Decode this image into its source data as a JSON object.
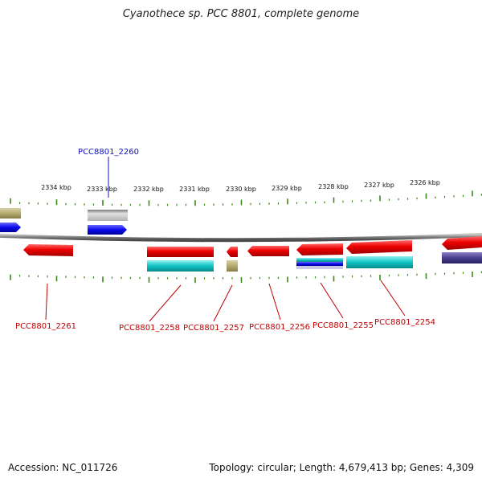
{
  "title": "Cyanothece sp. PCC 8801, complete genome",
  "footer": {
    "accession": "Accession: NC_011726",
    "summary": "Topology: circular; Length: 4,679,413 bp; Genes: 4,309"
  },
  "colors": {
    "backbone": "#7a7a7a",
    "tick": "#3a8a1a",
    "cds": "#ee0000",
    "rna_teal": "#10c4c4",
    "khaki": "#b5ab6f",
    "blue": "#0a0aee",
    "gray_feature": "#bdbdbd",
    "navy": "#4a3f8e",
    "label_top": "#1010c0",
    "label_bottom": "#c00000"
  },
  "kbp_labels": [
    "2334 kbp",
    "2333 kbp",
    "2332 kbp",
    "2331 kbp",
    "2330 kbp",
    "2329 kbp",
    "2328 kbp",
    "2327 kbp",
    "2326 kbp"
  ],
  "genes_top": [
    {
      "label": "PCC8801_2260",
      "color": "blue"
    }
  ],
  "genes_bottom": [
    {
      "label": "PCC8801_2261"
    },
    {
      "label": "PCC8801_2258"
    },
    {
      "label": "PCC8801_2257"
    },
    {
      "label": "PCC8801_2256"
    },
    {
      "label": "PCC8801_2255"
    },
    {
      "label": "PCC8801_2254"
    }
  ]
}
